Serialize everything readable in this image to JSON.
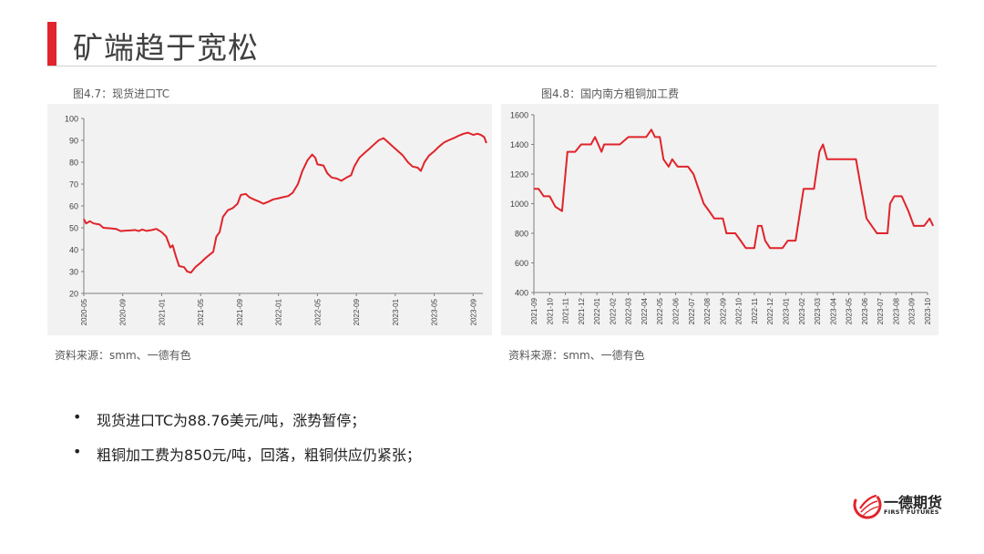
{
  "page": {
    "title": "矿端趋于宽松",
    "accent_color": "#e0242b"
  },
  "figures": [
    {
      "caption": "图4.7：现货进口TC",
      "source": "资料来源：smm、一德有色"
    },
    {
      "caption": "图4.8：国内南方粗铜加工费",
      "source": "资料来源：smm、一德有色"
    }
  ],
  "bullets": [
    {
      "marker": "•",
      "text": "现货进口TC为88.76美元/吨，涨势暂停；"
    },
    {
      "marker": "•",
      "text": "粗铜加工费为850元/吨，回落，粗铜供应仍紧张；"
    }
  ],
  "logo": {
    "name_cn": "一德期货",
    "name_en": "FIRST FUTURES",
    "icon": "first-futures-logo-icon"
  },
  "chart_data": [
    {
      "type": "line",
      "title": "",
      "ylim": [
        20,
        100
      ],
      "yticks": [
        20,
        30,
        40,
        50,
        60,
        70,
        80,
        90,
        100
      ],
      "grid": false,
      "color": "#e0242b",
      "x_tick_labels": [
        "2020-05",
        "2020-09",
        "2021-01",
        "2021-05",
        "2021-09",
        "2022-01",
        "2022-05",
        "2022-09",
        "2023-01",
        "2023-05",
        "2023-09"
      ],
      "x_start": "2020-05",
      "x_end": "2023-10",
      "points": [
        [
          "2020-05-01",
          54
        ],
        [
          "2020-05-08",
          52
        ],
        [
          "2020-05-20",
          53
        ],
        [
          "2020-06-01",
          52
        ],
        [
          "2020-06-20",
          51.5
        ],
        [
          "2020-07-01",
          50
        ],
        [
          "2020-07-20",
          49.8
        ],
        [
          "2020-08-10",
          49.5
        ],
        [
          "2020-08-25",
          48.5
        ],
        [
          "2020-09-10",
          48.7
        ],
        [
          "2020-09-25",
          48.8
        ],
        [
          "2020-10-10",
          49
        ],
        [
          "2020-10-20",
          48.5
        ],
        [
          "2020-11-01",
          49.2
        ],
        [
          "2020-11-15",
          48.6
        ],
        [
          "2020-12-01",
          49
        ],
        [
          "2020-12-15",
          49.5
        ],
        [
          "2021-01-01",
          48
        ],
        [
          "2021-01-15",
          46
        ],
        [
          "2021-01-28",
          41
        ],
        [
          "2021-02-05",
          42
        ],
        [
          "2021-02-15",
          37
        ],
        [
          "2021-02-25",
          32.5
        ],
        [
          "2021-03-10",
          32
        ],
        [
          "2021-03-20",
          30
        ],
        [
          "2021-04-01",
          29.5
        ],
        [
          "2021-04-15",
          32
        ],
        [
          "2021-05-01",
          34
        ],
        [
          "2021-05-15",
          36
        ],
        [
          "2021-06-01",
          38
        ],
        [
          "2021-06-10",
          39
        ],
        [
          "2021-06-20",
          46
        ],
        [
          "2021-06-30",
          48
        ],
        [
          "2021-07-10",
          55
        ],
        [
          "2021-07-25",
          58
        ],
        [
          "2021-08-10",
          59
        ],
        [
          "2021-08-25",
          61
        ],
        [
          "2021-09-05",
          65
        ],
        [
          "2021-09-20",
          65.5
        ],
        [
          "2021-10-01",
          64
        ],
        [
          "2021-10-15",
          63
        ],
        [
          "2021-11-01",
          62
        ],
        [
          "2021-11-15",
          61
        ],
        [
          "2021-12-01",
          62
        ],
        [
          "2021-12-15",
          63
        ],
        [
          "2022-01-01",
          63.5
        ],
        [
          "2022-01-15",
          64
        ],
        [
          "2022-02-01",
          64.5
        ],
        [
          "2022-02-15",
          66
        ],
        [
          "2022-03-01",
          70
        ],
        [
          "2022-03-15",
          76
        ],
        [
          "2022-04-01",
          81
        ],
        [
          "2022-04-15",
          83.5
        ],
        [
          "2022-04-25",
          82
        ],
        [
          "2022-05-01",
          79
        ],
        [
          "2022-05-20",
          78.5
        ],
        [
          "2022-06-01",
          75
        ],
        [
          "2022-06-15",
          73
        ],
        [
          "2022-07-01",
          72.5
        ],
        [
          "2022-07-15",
          71.5
        ],
        [
          "2022-08-01",
          73
        ],
        [
          "2022-08-15",
          74
        ],
        [
          "2022-08-25",
          78
        ],
        [
          "2022-09-10",
          82
        ],
        [
          "2022-09-25",
          84
        ],
        [
          "2022-10-10",
          86
        ],
        [
          "2022-10-25",
          88
        ],
        [
          "2022-11-10",
          90
        ],
        [
          "2022-11-25",
          91
        ],
        [
          "2022-12-10",
          89
        ],
        [
          "2022-12-25",
          87
        ],
        [
          "2023-01-10",
          85
        ],
        [
          "2023-01-25",
          83
        ],
        [
          "2023-02-10",
          80
        ],
        [
          "2023-02-25",
          78
        ],
        [
          "2023-03-10",
          77.5
        ],
        [
          "2023-03-20",
          76
        ],
        [
          "2023-04-01",
          80
        ],
        [
          "2023-04-15",
          83
        ],
        [
          "2023-05-01",
          85
        ],
        [
          "2023-05-15",
          87
        ],
        [
          "2023-06-01",
          89
        ],
        [
          "2023-06-15",
          90
        ],
        [
          "2023-07-01",
          91
        ],
        [
          "2023-07-15",
          92
        ],
        [
          "2023-08-01",
          93
        ],
        [
          "2023-08-15",
          93.5
        ],
        [
          "2023-09-01",
          92.5
        ],
        [
          "2023-09-15",
          93
        ],
        [
          "2023-09-25",
          92.5
        ],
        [
          "2023-10-05",
          91.5
        ],
        [
          "2023-10-12",
          88.76
        ]
      ]
    },
    {
      "type": "line",
      "title": "",
      "ylim": [
        400,
        1600
      ],
      "yticks": [
        400,
        600,
        800,
        1000,
        1200,
        1400,
        1600
      ],
      "grid": false,
      "color": "#e0242b",
      "x_tick_labels": [
        "2021-09",
        "2021-10",
        "2021-11",
        "2021-12",
        "2022-01",
        "2022-02",
        "2022-03",
        "2022-04",
        "2022-05",
        "2022-06",
        "2022-07",
        "2022-08",
        "2022-09",
        "2022-10",
        "2022-11",
        "2022-12",
        "2023-01",
        "2023-02",
        "2023-03",
        "2023-04",
        "2023-05",
        "2023-06",
        "2023-07",
        "2023-08",
        "2023-09",
        "2023-10"
      ],
      "x_start": "2021-09",
      "x_end": "2023-10",
      "points": [
        [
          "2021-09-01",
          1100
        ],
        [
          "2021-09-10",
          1100
        ],
        [
          "2021-09-20",
          1050
        ],
        [
          "2021-10-01",
          1050
        ],
        [
          "2021-10-12",
          980
        ],
        [
          "2021-10-25",
          950
        ],
        [
          "2021-11-05",
          1350
        ],
        [
          "2021-11-20",
          1350
        ],
        [
          "2021-12-01",
          1400
        ],
        [
          "2021-12-20",
          1400
        ],
        [
          "2021-12-28",
          1450
        ],
        [
          "2022-01-10",
          1350
        ],
        [
          "2022-01-15",
          1400
        ],
        [
          "2022-02-01",
          1400
        ],
        [
          "2022-02-15",
          1400
        ],
        [
          "2022-03-01",
          1450
        ],
        [
          "2022-04-05",
          1450
        ],
        [
          "2022-04-15",
          1500
        ],
        [
          "2022-04-22",
          1450
        ],
        [
          "2022-05-01",
          1450
        ],
        [
          "2022-05-08",
          1300
        ],
        [
          "2022-05-18",
          1250
        ],
        [
          "2022-05-25",
          1300
        ],
        [
          "2022-06-05",
          1250
        ],
        [
          "2022-06-25",
          1250
        ],
        [
          "2022-07-05",
          1200
        ],
        [
          "2022-07-15",
          1100
        ],
        [
          "2022-07-25",
          1000
        ],
        [
          "2022-08-05",
          950
        ],
        [
          "2022-08-15",
          900
        ],
        [
          "2022-09-01",
          900
        ],
        [
          "2022-09-08",
          800
        ],
        [
          "2022-09-25",
          800
        ],
        [
          "2022-10-05",
          750
        ],
        [
          "2022-10-15",
          700
        ],
        [
          "2022-11-01",
          700
        ],
        [
          "2022-11-08",
          850
        ],
        [
          "2022-11-15",
          850
        ],
        [
          "2022-11-22",
          750
        ],
        [
          "2022-12-01",
          700
        ],
        [
          "2022-12-25",
          700
        ],
        [
          "2023-01-05",
          750
        ],
        [
          "2023-01-20",
          750
        ],
        [
          "2023-02-05",
          1100
        ],
        [
          "2023-02-25",
          1100
        ],
        [
          "2023-03-05",
          1350
        ],
        [
          "2023-03-12",
          1400
        ],
        [
          "2023-03-20",
          1300
        ],
        [
          "2023-04-10",
          1300
        ],
        [
          "2023-05-01",
          1300
        ],
        [
          "2023-05-15",
          1300
        ],
        [
          "2023-05-25",
          1100
        ],
        [
          "2023-06-05",
          900
        ],
        [
          "2023-06-15",
          850
        ],
        [
          "2023-06-25",
          800
        ],
        [
          "2023-07-15",
          800
        ],
        [
          "2023-07-20",
          1000
        ],
        [
          "2023-07-28",
          1050
        ],
        [
          "2023-08-12",
          1050
        ],
        [
          "2023-08-25",
          950
        ],
        [
          "2023-09-05",
          850
        ],
        [
          "2023-09-25",
          850
        ],
        [
          "2023-10-05",
          900
        ],
        [
          "2023-10-12",
          850
        ]
      ]
    }
  ]
}
